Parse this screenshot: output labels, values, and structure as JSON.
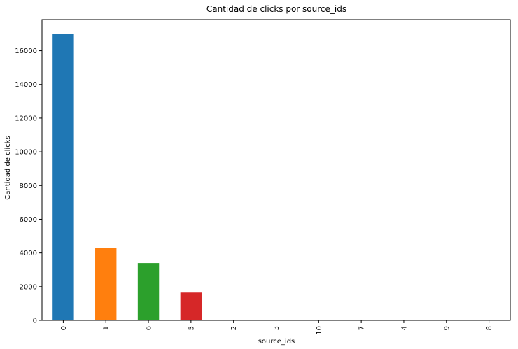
{
  "chart_data": {
    "type": "bar",
    "title": "Cantidad de clicks por source_ids",
    "xlabel": "source_ids",
    "ylabel": "Cantidad de clicks",
    "categories": [
      "0",
      "1",
      "6",
      "5",
      "2",
      "3",
      "10",
      "7",
      "4",
      "9",
      "8"
    ],
    "values": [
      17000,
      4300,
      3400,
      1650,
      20,
      10,
      8,
      5,
      3,
      2,
      1
    ],
    "colors": [
      "#1f77b4",
      "#ff7f0e",
      "#2ca02c",
      "#d62728",
      "#9467bd",
      "#8c564b",
      "#e377c2",
      "#7f7f7f",
      "#bcbd22",
      "#17becf",
      "#1f77b4"
    ],
    "ylim": [
      0,
      17850
    ],
    "yticks": [
      0,
      2000,
      4000,
      6000,
      8000,
      10000,
      12000,
      14000,
      16000
    ],
    "grid": false,
    "legend": "none"
  }
}
